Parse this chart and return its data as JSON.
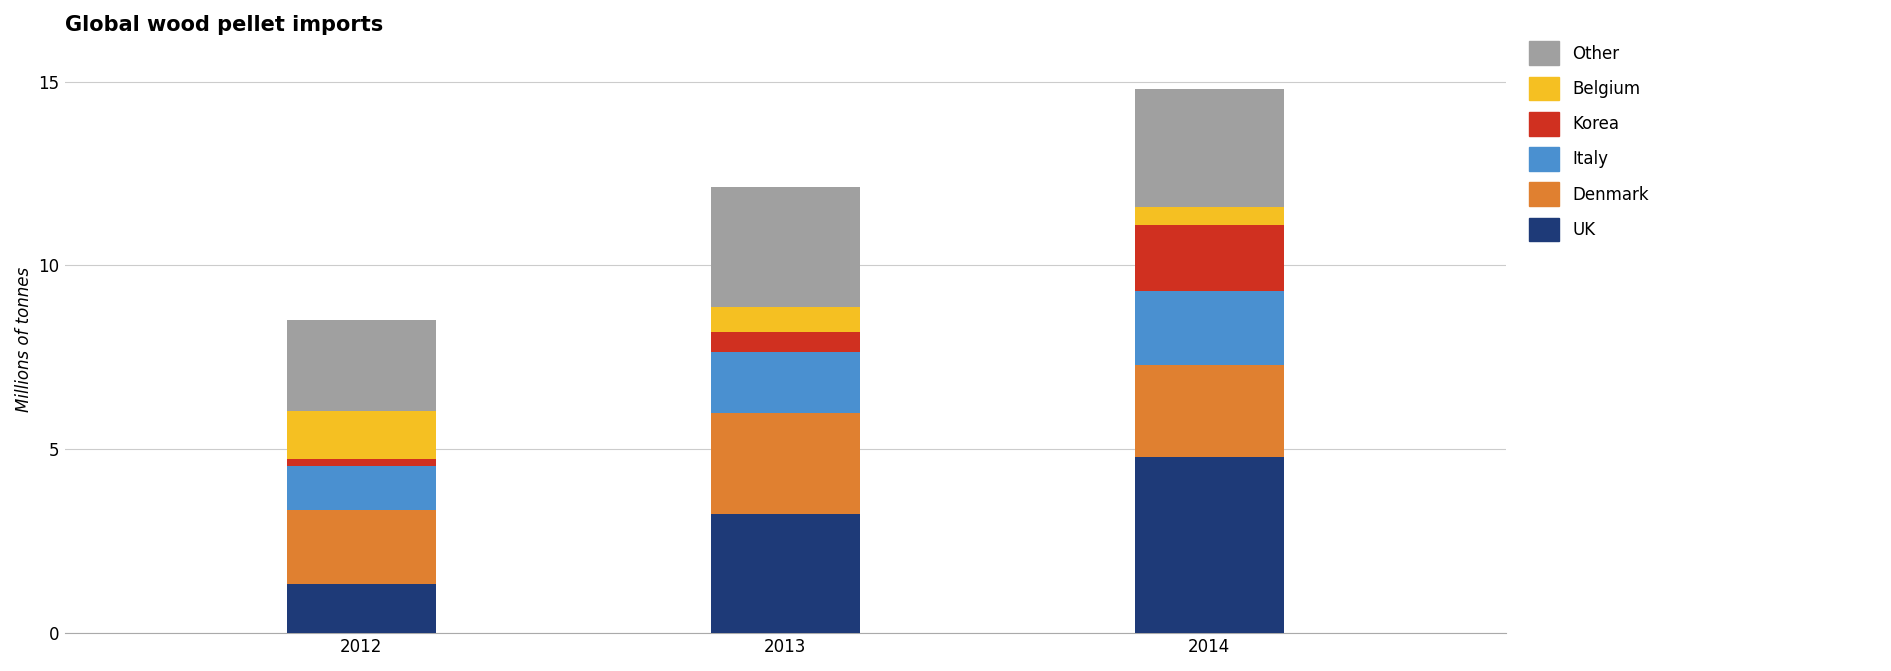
{
  "title": "Global wood pellet imports",
  "ylabel": "Millions of tonnes",
  "years": [
    "2012",
    "2013",
    "2014"
  ],
  "series": [
    {
      "label": "UK",
      "color": "#1e3a78",
      "values": [
        1.35,
        3.25,
        4.8
      ]
    },
    {
      "label": "Denmark",
      "color": "#e08030",
      "values": [
        2.0,
        2.75,
        2.5
      ]
    },
    {
      "label": "Italy",
      "color": "#4a90d0",
      "values": [
        1.2,
        1.65,
        2.0
      ]
    },
    {
      "label": "Korea",
      "color": "#d03020",
      "values": [
        0.18,
        0.55,
        1.8
      ]
    },
    {
      "label": "Belgium",
      "color": "#f5c022",
      "values": [
        1.3,
        0.68,
        0.5
      ]
    },
    {
      "label": "Other",
      "color": "#a0a0a0",
      "values": [
        2.5,
        3.25,
        3.2
      ]
    }
  ],
  "ylim": [
    0,
    16
  ],
  "yticks": [
    0,
    5,
    10,
    15
  ],
  "background_color": "#ffffff",
  "title_fontsize": 15,
  "label_fontsize": 12,
  "tick_fontsize": 12,
  "bar_width": 0.35,
  "grid_color": "#cccccc"
}
